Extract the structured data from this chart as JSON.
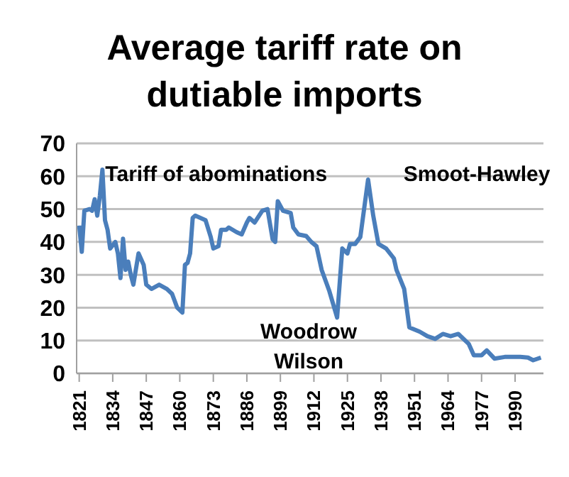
{
  "chart_data": {
    "type": "line",
    "title": "Average tariff rate on dutiable imports",
    "x": [
      1821,
      1822,
      1823,
      1825,
      1826,
      1827,
      1828,
      1829,
      1830,
      1831,
      1832,
      1833,
      1835,
      1836,
      1837,
      1838,
      1839,
      1840,
      1841,
      1842,
      1844,
      1846,
      1847,
      1849,
      1852,
      1855,
      1857,
      1859,
      1861,
      1862,
      1863,
      1864,
      1865,
      1866,
      1868,
      1870,
      1872,
      1873,
      1875,
      1876,
      1878,
      1879,
      1882,
      1884,
      1886,
      1887,
      1889,
      1892,
      1894,
      1896,
      1897,
      1898,
      1900,
      1903,
      1904,
      1906,
      1909,
      1911,
      1913,
      1915,
      1918,
      1921,
      1923,
      1925,
      1926,
      1928,
      1930,
      1933,
      1935,
      1937,
      1940,
      1943,
      1944,
      1947,
      1949,
      1953,
      1956,
      1959,
      1962,
      1965,
      1968,
      1972,
      1974,
      1977,
      1979,
      1982,
      1986,
      1992,
      1995,
      1997,
      2000
    ],
    "series": [
      {
        "color": "#4a7ebb",
        "values": [
          45,
          37,
          49.5,
          50,
          49.5,
          53,
          48,
          54,
          62,
          46.6,
          43.7,
          38,
          40,
          36.5,
          29,
          41,
          31.5,
          34,
          30,
          27,
          36.5,
          33,
          27,
          25.7,
          27,
          25.7,
          24.2,
          20,
          18.5,
          33,
          33.6,
          36.5,
          47.3,
          48,
          47.3,
          46.6,
          41.5,
          38,
          38.7,
          43.7,
          43.7,
          44.4,
          43,
          42.3,
          45.9,
          47.3,
          45.9,
          49.5,
          50,
          40.8,
          40,
          52.4,
          49.5,
          48.8,
          44.4,
          42.3,
          41.8,
          40,
          38.7,
          31.5,
          25,
          17,
          38,
          36.5,
          39.4,
          39.4,
          41.5,
          59,
          48,
          39.4,
          38,
          35,
          31.5,
          25.7,
          14,
          12.7,
          11.3,
          10.5,
          12,
          11.3,
          12,
          9,
          5.5,
          5.5,
          7,
          4.5,
          5,
          5,
          4.8,
          4,
          4.8
        ]
      }
    ],
    "xlim": [
      1820,
      2001
    ],
    "xticks": [
      1821,
      1834,
      1847,
      1860,
      1873,
      1886,
      1899,
      1912,
      1925,
      1938,
      1951,
      1964,
      1977,
      1990
    ],
    "ylim": [
      0,
      70
    ],
    "yticks": [
      0,
      10,
      20,
      30,
      40,
      50,
      60,
      70
    ],
    "grid": "y",
    "legend": false,
    "marker": "none",
    "line_style": "solid",
    "annotations": [
      {
        "text": "Tariff of abominations",
        "x": 1830,
        "y": 62
      },
      {
        "text": "Smoot-Hawley",
        "x": 1933,
        "y": 59
      },
      {
        "text": "Woodrow Wilson",
        "x": 1921,
        "y": 17
      }
    ]
  }
}
